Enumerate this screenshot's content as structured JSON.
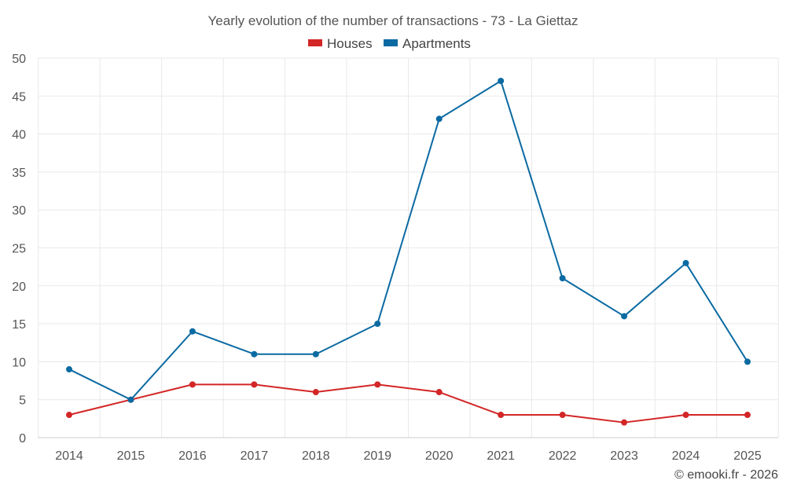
{
  "chart_data": {
    "type": "line",
    "title": "Yearly evolution of the number of transactions - 73 - La Giettaz",
    "categories": [
      "2014",
      "2015",
      "2016",
      "2017",
      "2018",
      "2019",
      "2020",
      "2021",
      "2022",
      "2023",
      "2024",
      "2025"
    ],
    "series": [
      {
        "name": "Houses",
        "color": "#d32626",
        "values": [
          3,
          5,
          7,
          7,
          6,
          7,
          6,
          3,
          3,
          2,
          3,
          3
        ]
      },
      {
        "name": "Apartments",
        "color": "#0b6aa2",
        "values": [
          9,
          5,
          14,
          11,
          11,
          15,
          42,
          47,
          21,
          16,
          23,
          10
        ]
      }
    ],
    "ylim": [
      0,
      50
    ],
    "yticks": [
      0,
      5,
      10,
      15,
      20,
      25,
      30,
      35,
      40,
      45,
      50
    ],
    "xlabel": "",
    "ylabel": "",
    "grid": true,
    "legend_position": "top-center"
  },
  "credit": "© emooki.fr - 2026"
}
